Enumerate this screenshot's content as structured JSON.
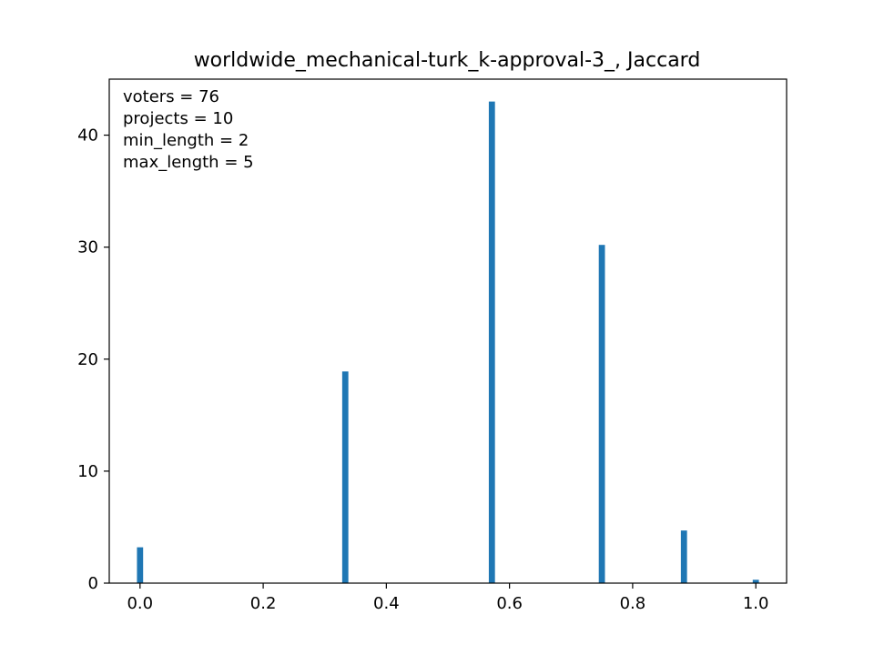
{
  "chart_data": {
    "type": "bar",
    "title": "worldwide_mechanical-turk_k-approval-3_, Jaccard",
    "xlabel": "",
    "ylabel": "",
    "xlim": [
      -0.05,
      1.05
    ],
    "ylim": [
      0,
      45
    ],
    "grid": false,
    "bar_color": "#1f77b4",
    "bar_width": 0.01,
    "x_ticks": [
      0.0,
      0.2,
      0.4,
      0.6,
      0.8,
      1.0
    ],
    "x_tick_labels": [
      "0.0",
      "0.2",
      "0.4",
      "0.6",
      "0.8",
      "1.0"
    ],
    "y_ticks": [
      0,
      10,
      20,
      30,
      40
    ],
    "y_tick_labels": [
      "0",
      "10",
      "20",
      "30",
      "40"
    ],
    "x": [
      0.0,
      0.3333,
      0.5714,
      0.75,
      0.8833,
      1.0
    ],
    "values": [
      3.2,
      18.9,
      43.0,
      30.2,
      4.7,
      0.3
    ],
    "annotations": [
      "voters = 76",
      "projects = 10",
      "min_length = 2",
      "max_length = 5"
    ]
  }
}
